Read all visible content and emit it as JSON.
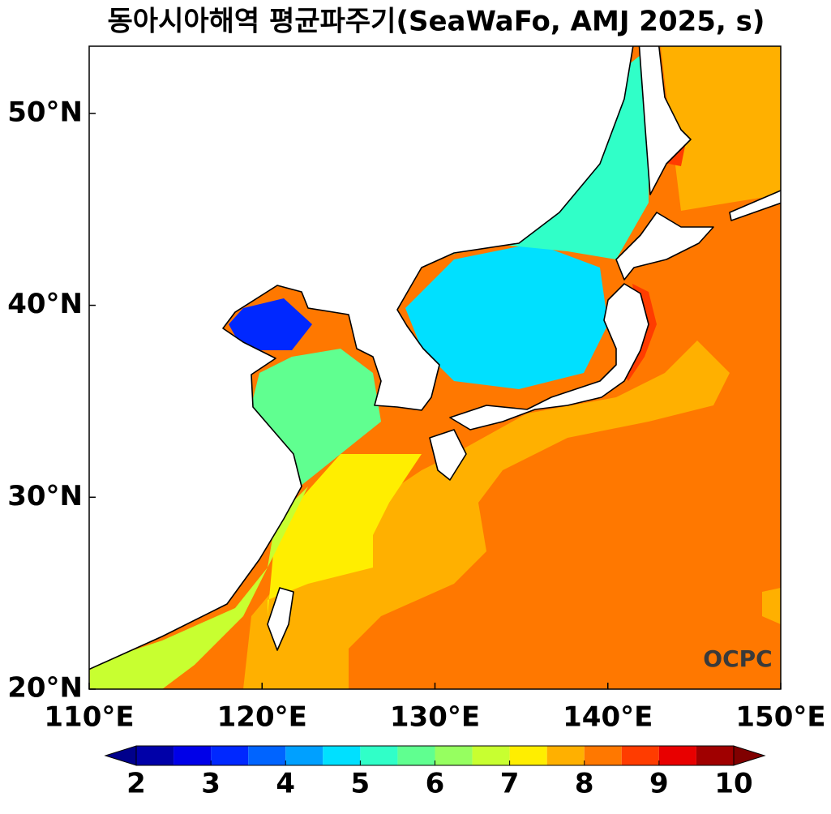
{
  "chart_data": {
    "type": "map",
    "title": "동아시아해역 평균파주기(SeaWaFo, AMJ 2025, s)",
    "xlim": [
      110,
      150
    ],
    "ylim": [
      20,
      53.5
    ],
    "xticks": [
      {
        "value": 110,
        "label": "110°E"
      },
      {
        "value": 120,
        "label": "120°E"
      },
      {
        "value": 130,
        "label": "130°E"
      },
      {
        "value": 140,
        "label": "140°E"
      },
      {
        "value": 150,
        "label": "150°E"
      }
    ],
    "yticks": [
      {
        "value": 20,
        "label": "20°N"
      },
      {
        "value": 30,
        "label": "30°N"
      },
      {
        "value": 40,
        "label": "40°N"
      },
      {
        "value": 50,
        "label": "50°N"
      }
    ],
    "logo": "OCPC",
    "colorbar": {
      "lim": [
        2,
        10
      ],
      "ticks": [
        2,
        3,
        4,
        5,
        6,
        7,
        8,
        9,
        10
      ],
      "levels": [
        2,
        2.5,
        3,
        3.5,
        4,
        4.5,
        5,
        5.5,
        6,
        6.5,
        7,
        7.5,
        8,
        8.5,
        9,
        9.5,
        10
      ],
      "colors": [
        "#0000a8",
        "#0000e8",
        "#0028ff",
        "#0064ff",
        "#00a0ff",
        "#00e0ff",
        "#30ffc8",
        "#60ff90",
        "#96ff60",
        "#c8ff30",
        "#ffee00",
        "#ffb000",
        "#ff7800",
        "#ff3c00",
        "#e80000",
        "#a00000"
      ],
      "extend_colors": [
        "#00008b",
        "#800000"
      ]
    }
  }
}
